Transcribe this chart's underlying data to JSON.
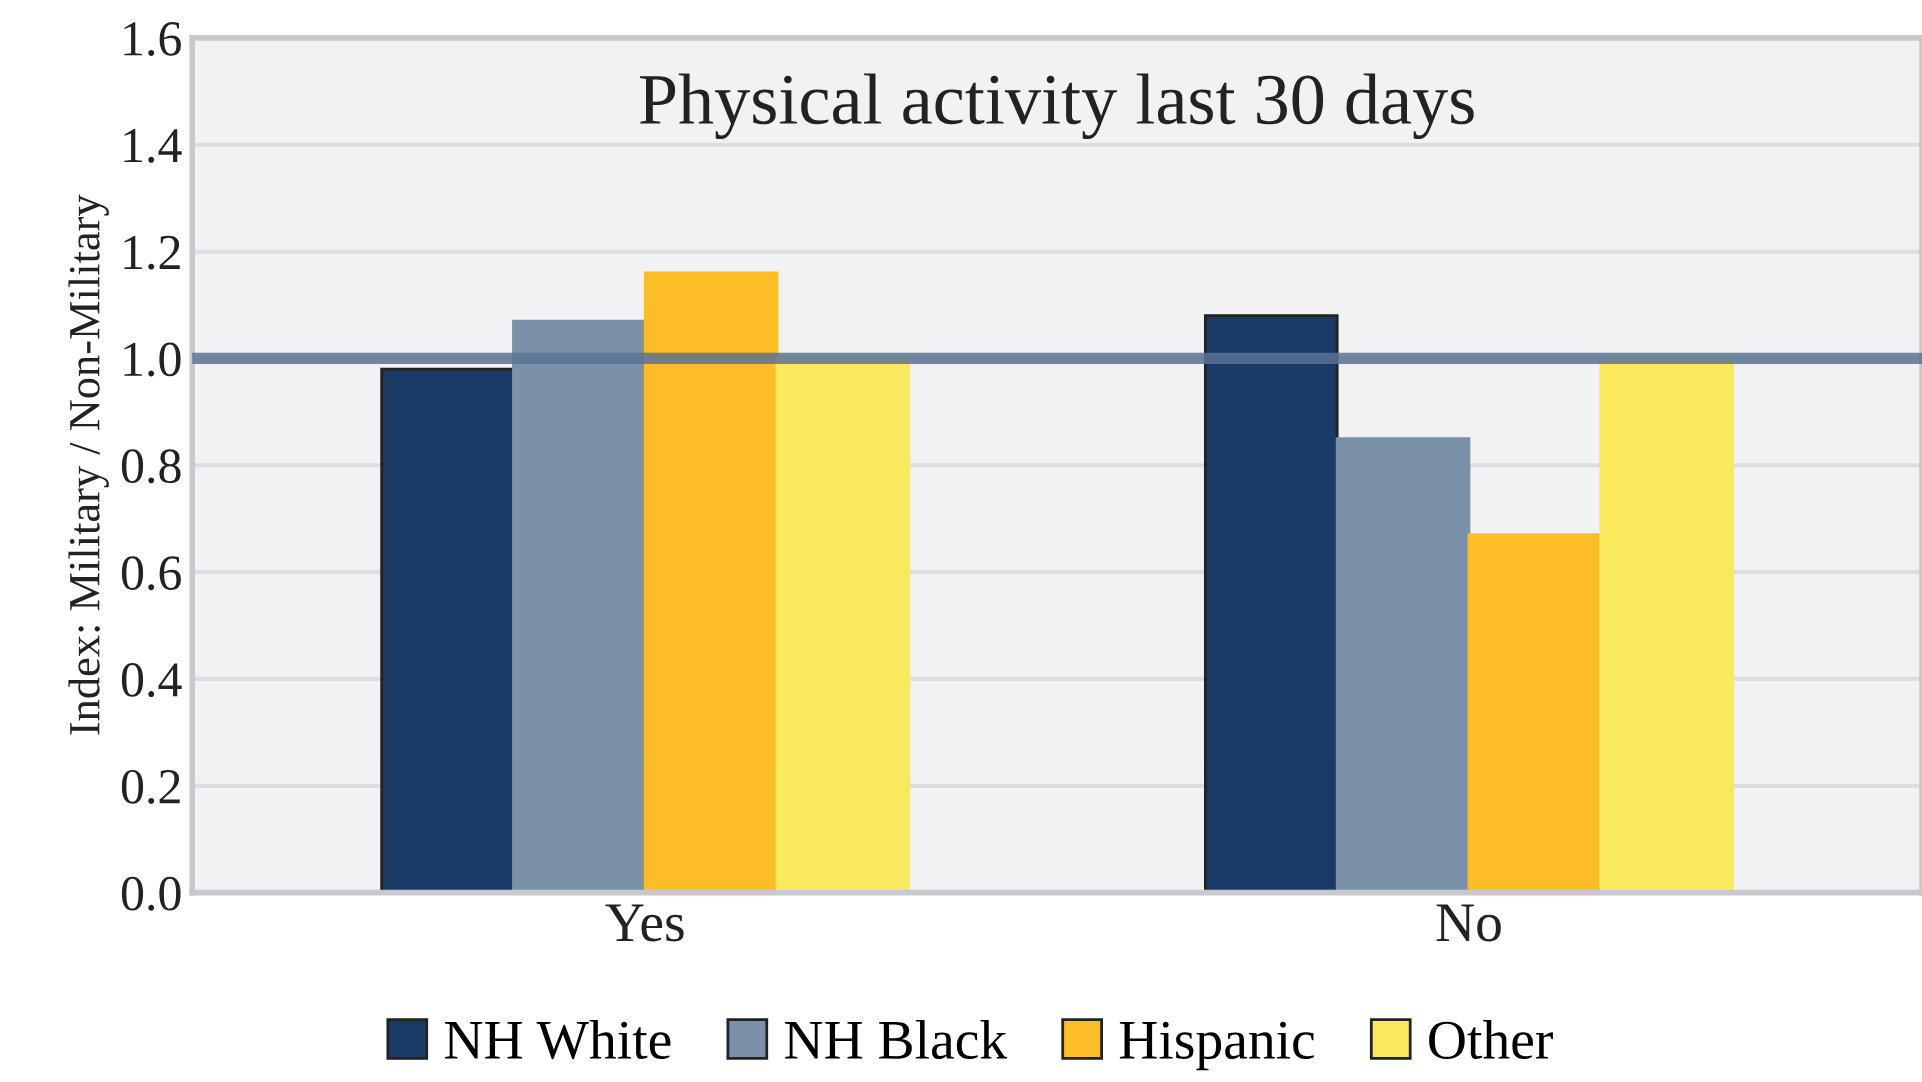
{
  "chart_data": {
    "type": "bar",
    "title": "Physical activity last 30 days",
    "ylabel": "Index: Military / Non-Military",
    "categories": [
      "Yes",
      "No"
    ],
    "series": [
      {
        "name": "NH White",
        "color": "#1a3b66",
        "values": [
          0.98,
          1.08
        ]
      },
      {
        "name": "NH Black",
        "color": "#7b91aa",
        "values": [
          1.07,
          0.85
        ]
      },
      {
        "name": "Hispanic",
        "color": "#fdbd27",
        "values": [
          1.16,
          0.67
        ]
      },
      {
        "name": "Other",
        "color": "#f8ea5c",
        "values": [
          1.0,
          1.0
        ]
      }
    ],
    "ylim": [
      0,
      1.6
    ],
    "yticks": [
      {
        "value": 0,
        "label": "0.0"
      },
      {
        "value": 0.2,
        "label": "0.2"
      },
      {
        "value": 0.4,
        "label": "0.4"
      },
      {
        "value": 0.6,
        "label": "0.6"
      },
      {
        "value": 0.8,
        "label": "0.8"
      },
      {
        "value": 1.0,
        "label": "1.0"
      },
      {
        "value": 1.2,
        "label": "1.2"
      },
      {
        "value": 1.4,
        "label": "1.4"
      },
      {
        "value": 1.6,
        "label": "1.6"
      }
    ],
    "ref_lines": [
      {
        "axis": "y",
        "value": 1.0,
        "color": "#5a7394"
      }
    ],
    "grid": "y",
    "legend": "bottom"
  }
}
